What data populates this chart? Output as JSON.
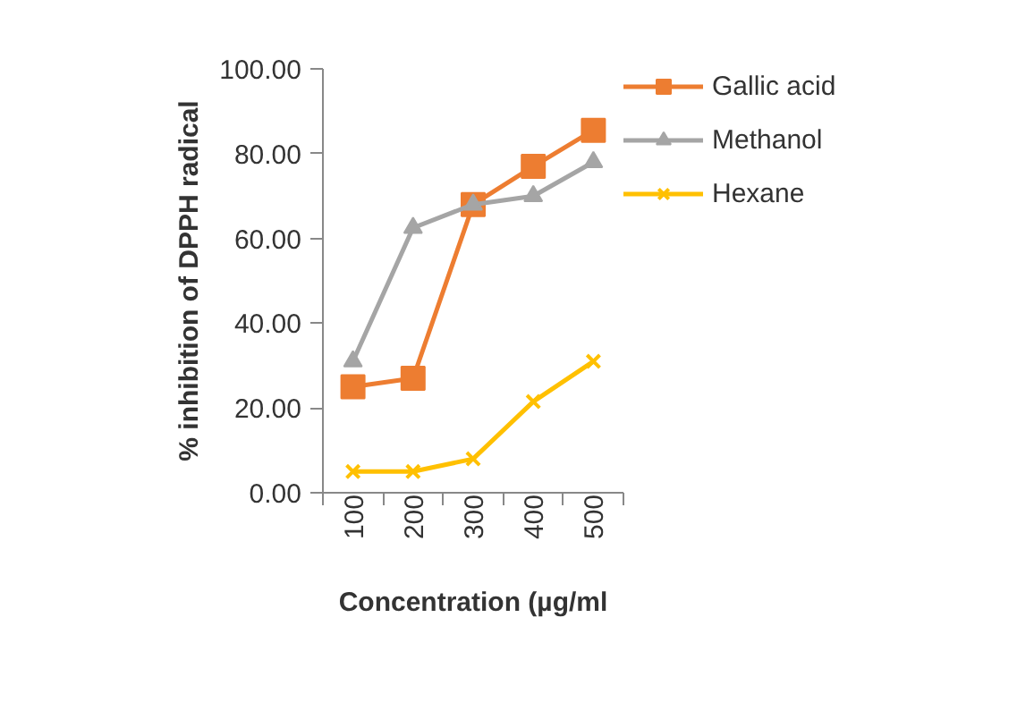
{
  "chart_data": {
    "type": "line",
    "xlabel": "Concentration (µg/ml",
    "ylabel": "% inhibition of DPPH radical",
    "categories": [
      "100",
      "200",
      "300",
      "400",
      "500"
    ],
    "series": [
      {
        "name": "Gallic acid",
        "color": "#ed7d31",
        "marker": "square",
        "values": [
          25,
          27,
          68,
          77,
          85.5
        ]
      },
      {
        "name": "Methanol",
        "color": "#a5a5a5",
        "marker": "triangle",
        "values": [
          31,
          62.5,
          68,
          70,
          78
        ]
      },
      {
        "name": "Hexane",
        "color": "#ffc000",
        "marker": "cross",
        "values": [
          5,
          5,
          8,
          21.5,
          31
        ]
      }
    ],
    "ylim": [
      0,
      100
    ],
    "yticks": [
      {
        "value": 0,
        "label": "0.00"
      },
      {
        "value": 20,
        "label": "20.00"
      },
      {
        "value": 40,
        "label": "40.00"
      },
      {
        "value": 60,
        "label": "60.00"
      },
      {
        "value": 80,
        "label": "80.00"
      },
      {
        "value": 100,
        "label": "100.00"
      }
    ],
    "legend": "right"
  }
}
